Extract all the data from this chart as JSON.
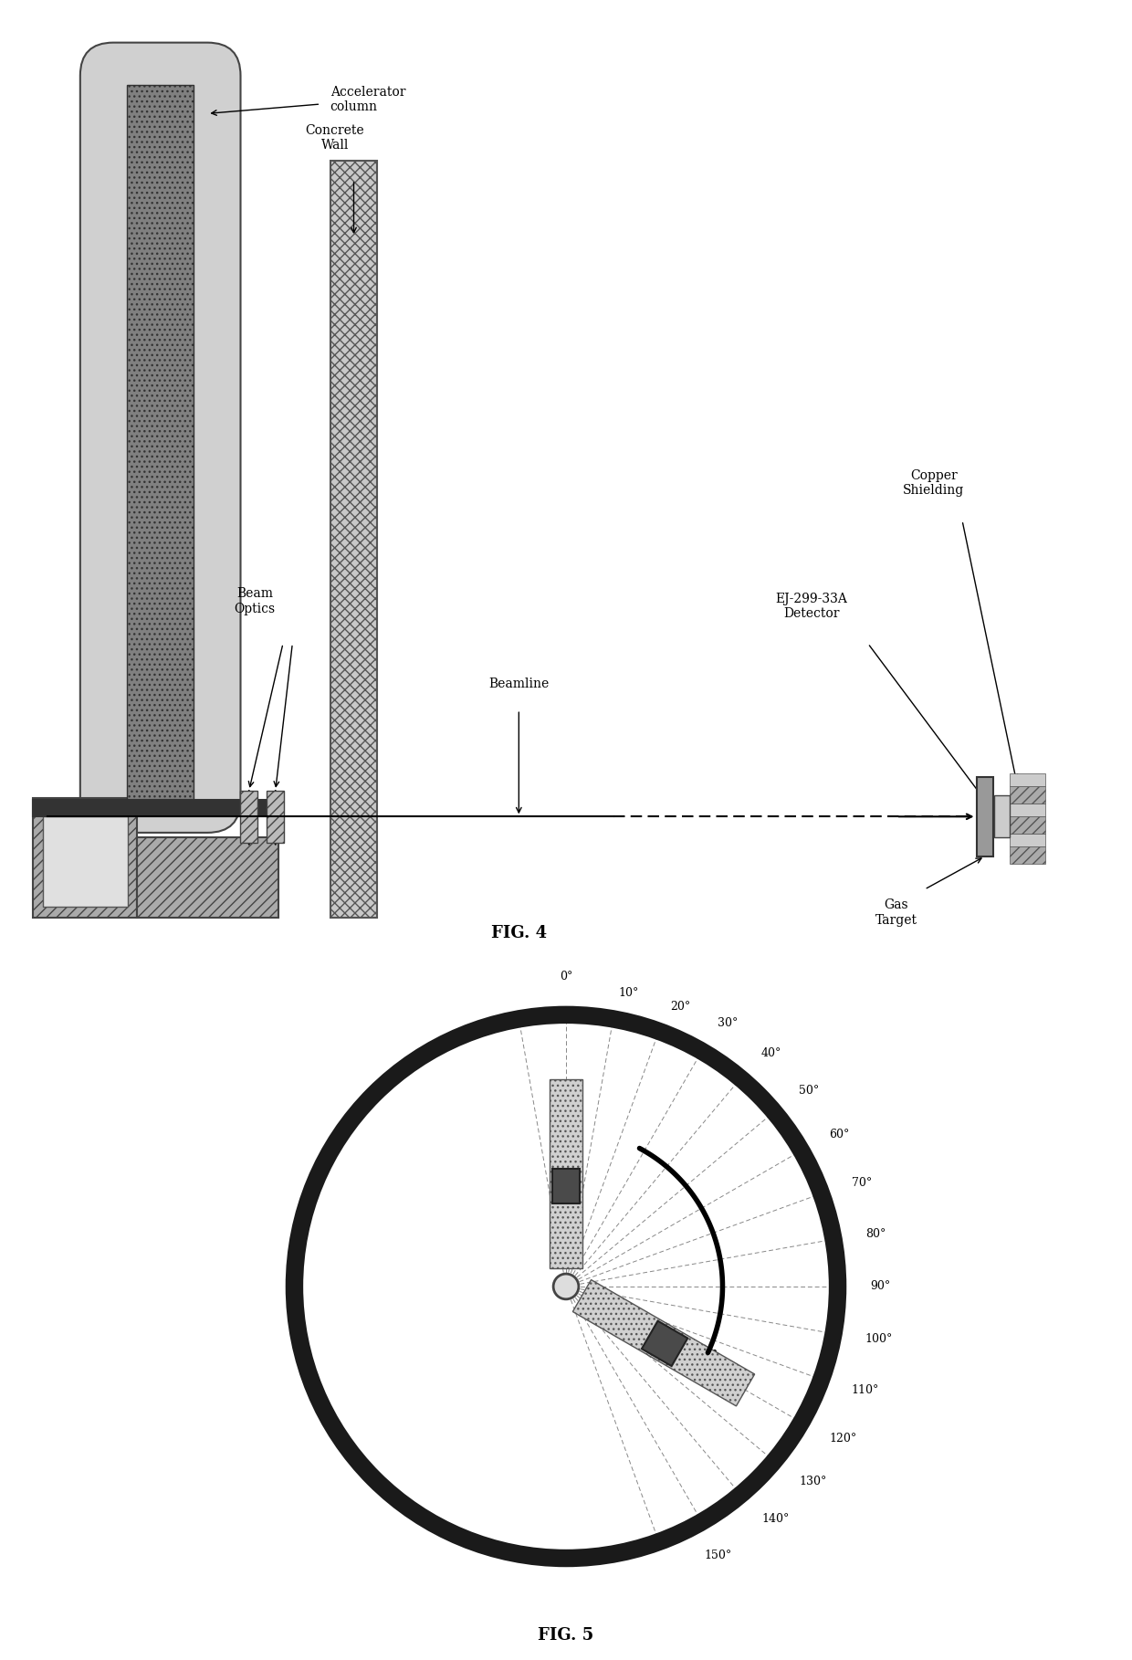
{
  "fig_width": 12.4,
  "fig_height": 18.18,
  "bg_color": "#ffffff",
  "fig4_label": "FIG. 4",
  "fig5_label": "FIG. 5",
  "angle_labels": [
    "0°",
    "10°",
    "20°",
    "30°",
    "40°",
    "50°",
    "60°",
    "70°",
    "80°",
    "90°",
    "100°",
    "110°",
    "120°",
    "130°",
    "140°",
    "150°"
  ],
  "angle_values": [
    0,
    10,
    20,
    30,
    40,
    50,
    60,
    70,
    80,
    90,
    100,
    110,
    120,
    130,
    140,
    150
  ],
  "labels_fig4": {
    "accelerator_column": "Accelerator\ncolumn",
    "concrete_wall": "Concrete\nWall",
    "beam_optics": "Beam\nOptics",
    "beamline": "Beamline",
    "ej_detector": "EJ-299-33A\nDetector",
    "copper_shielding": "Copper\nShielding",
    "gas_target": "Gas\nTarget"
  }
}
